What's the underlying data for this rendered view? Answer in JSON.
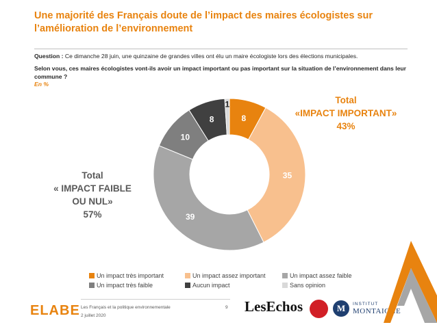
{
  "header": {
    "title": "Une majorité des Français doute de l’impact des maires écologistes sur l’amélioration de l’environnement",
    "question_label": "Question :",
    "question_text": "Ce dimanche 28 juin, une quinzaine de grandes villes ont élu un maire écologiste lors des élections municipales.",
    "question_main": "Selon vous, ces maires écologistes vont-ils avoir un impact important ou pas important sur la situation de l’environnement dans leur commune ?",
    "unit": "En %"
  },
  "totals": {
    "important": [
      "Total",
      "«IMPACT IMPORTANT»",
      "43%"
    ],
    "faible": [
      "Total",
      "« IMPACT FAIBLE",
      "OU NUL»",
      "57%"
    ]
  },
  "colors": {
    "orange": "#e8830f",
    "light_orange": "#f8c08e",
    "light_grey": "#a6a6a6",
    "mid_grey": "#7f7f7f",
    "dark_grey": "#404040",
    "very_light_grey": "#d9d9d9"
  },
  "chart_data": {
    "type": "pie",
    "donut": true,
    "categories": [
      "Un impact très important",
      "Un impact assez important",
      "Un impact assez faible",
      "Un impact très faible",
      "Aucun impact",
      "Sans opinion"
    ],
    "values": [
      8,
      35,
      39,
      10,
      8,
      1
    ],
    "colors": [
      "#e8830f",
      "#f8c08e",
      "#a6a6a6",
      "#7f7f7f",
      "#404040",
      "#d9d9d9"
    ],
    "label_colors": [
      "#ffffff",
      "#ffffff",
      "#ffffff",
      "#ffffff",
      "#ffffff",
      "#262626"
    ],
    "legend_placement": "bottom"
  },
  "footer": {
    "brand": "ELABE",
    "source_line1": "Les Français et la politique environnementale",
    "source_line2": "2 juillet 2020",
    "page": "9",
    "partner1": "LesEchos",
    "partner3_line1": "INSTITUT",
    "partner3_line2": "MONTAIGNE",
    "partner3_letter": "M"
  }
}
